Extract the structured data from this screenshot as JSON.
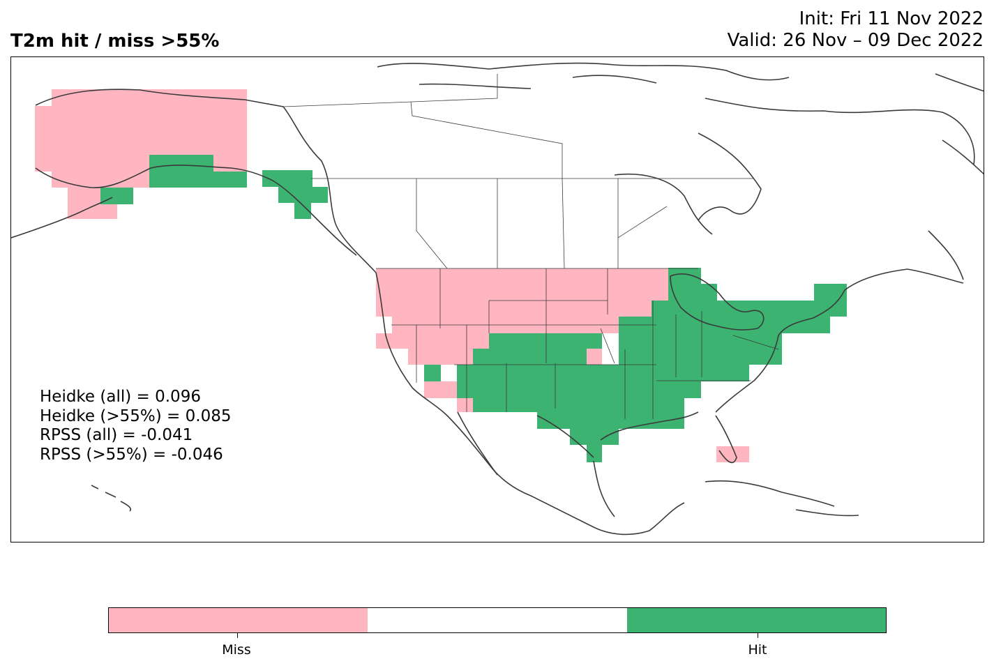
{
  "title": "T2m hit / miss  >55%",
  "init": "Init: Fri 11 Nov 2022",
  "valid": "Valid: 26 Nov – 09 Dec 2022",
  "stats": [
    "Heidke (all) = 0.096",
    "Heidke (>55%) = 0.085",
    "RPSS (all) = -0.041",
    "RPSS (>55%) = -0.046"
  ],
  "colors": {
    "miss": "#ffb6c1",
    "neutral": "#ffffff",
    "hit": "#3cb371",
    "coast": "#3a3a3a"
  },
  "legend": {
    "segments": [
      "miss",
      "neutral",
      "hit"
    ],
    "labels": [
      "Miss",
      "Hit"
    ]
  },
  "regions": [
    {
      "region": "Alaska mainland",
      "class": "miss"
    },
    {
      "region": "South-central Alaska coast",
      "class": "hit"
    },
    {
      "region": "Alaska Panhandle",
      "class": "hit"
    },
    {
      "region": "Pacific Northwest",
      "class": "miss"
    },
    {
      "region": "Northern Rockies and Northern Plains",
      "class": "miss"
    },
    {
      "region": "Upper Midwest (Minnesota)",
      "class": "miss"
    },
    {
      "region": "Great Basin and California",
      "class": "miss"
    },
    {
      "region": "Southwest and Southern Rockies",
      "class": "hit"
    },
    {
      "region": "Southern Plains and Texas",
      "class": "hit"
    },
    {
      "region": "Central Plains and Midwest",
      "class": "hit"
    },
    {
      "region": "Great Lakes",
      "class": "hit"
    },
    {
      "region": "Ohio and Tennessee Valleys",
      "class": "hit"
    },
    {
      "region": "Northeast and Mid-Atlantic",
      "class": "hit"
    },
    {
      "region": "Gulf Coast states",
      "class": "hit"
    },
    {
      "region": "Southeast Atlantic coast",
      "class": "neutral"
    },
    {
      "region": "South Florida",
      "class": "miss"
    }
  ]
}
